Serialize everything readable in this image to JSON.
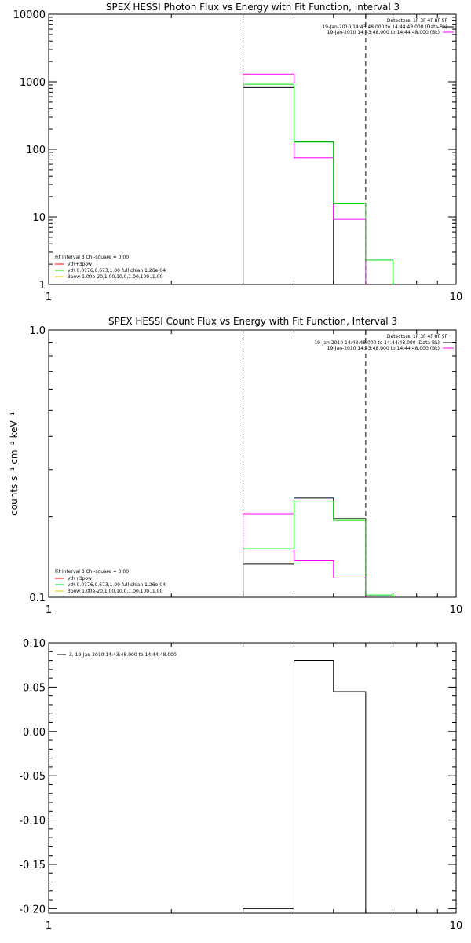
{
  "chart_data": [
    {
      "type": "line",
      "title": "SPEX HESSI Photon Flux vs Energy with Fit Function, Interval 3",
      "xscale": "log",
      "yscale": "log",
      "xlim": [
        1,
        10
      ],
      "ylim": [
        1,
        10000
      ],
      "xticks": [
        "1",
        "10"
      ],
      "yticks": [
        "1",
        "10",
        "100",
        "1000",
        "10000"
      ],
      "vlines": [
        {
          "x": 3,
          "style": "dotted"
        },
        {
          "x": 6,
          "style": "dashed"
        }
      ],
      "legend_top": {
        "line1": "Detectors: 1F 3F 4F 8F 9F",
        "line2": "19-Jan-2010 14:43:48.000 to 14:44:48.000 (Data-Bk)",
        "line3": "19-Jan-2010 14:43:48.000 to 14:44:48.000 (Bk)"
      },
      "legend_bottom": {
        "line1": "Fit Interval 3   Chi-square = 0.00",
        "line2": "vth+3pow",
        "line3": "vth 0.0176,0.673,1.00  full chian 1.26e-04",
        "line4": "3pow 1.00e-20,1.00,10.0,1.00,100.,1.00"
      },
      "edges": [
        3,
        4,
        5,
        6,
        7
      ],
      "series": [
        {
          "color": "#000000",
          "values": [
            820,
            130,
            null,
            null
          ]
        },
        {
          "color": "#ff00ff",
          "values": [
            1300,
            75,
            9.2,
            null
          ]
        },
        {
          "color": "#00dd00",
          "values": [
            920,
            128,
            16,
            2.3
          ]
        }
      ]
    },
    {
      "type": "line",
      "title": "SPEX HESSI Count Flux vs Energy with Fit Function, Interval 3",
      "ylabel": "counts s⁻¹ cm⁻² keV⁻¹",
      "xscale": "log",
      "yscale": "log",
      "xlim": [
        1,
        10
      ],
      "ylim": [
        0.1,
        1.0
      ],
      "xticks": [
        "1",
        "10"
      ],
      "yticks": [
        "0.1",
        "1.0"
      ],
      "vlines": [
        {
          "x": 3,
          "style": "dotted"
        },
        {
          "x": 6,
          "style": "dashed"
        }
      ],
      "legend_top": {
        "line1": "Detectors: 1F 3F 4F 8F 9F",
        "line2": "19-Jan-2010 14:43:48.000 to 14:44:48.000 (Data-Bk)",
        "line3": "19-Jan-2010 14:43:48.000 to 14:44:48.000 (Bk)"
      },
      "legend_bottom": {
        "line1": "Fit Interval 3   Chi-square = 0.00",
        "line2": "vth+3pow",
        "line3": "vth 0.0176,0.673,1.00  full chian 1.26e-04",
        "line4": "3pow 1.00e-20,1.00,10.0,1.00,100.,1.00"
      },
      "edges": [
        3,
        4,
        5,
        6,
        7
      ],
      "series": [
        {
          "color": "#000000",
          "values": [
            0.133,
            0.235,
            0.197,
            null
          ]
        },
        {
          "color": "#ff00ff",
          "values": [
            0.205,
            0.137,
            0.118,
            null
          ]
        },
        {
          "color": "#00dd00",
          "values": [
            0.152,
            0.229,
            0.194,
            0.102
          ]
        }
      ]
    },
    {
      "type": "line",
      "xscale": "log",
      "yscale": "linear",
      "xlim": [
        1,
        10
      ],
      "ylim": [
        -0.205,
        0.1
      ],
      "xticks": [
        "1",
        "10"
      ],
      "yticks": [
        {
          "v": 0.1,
          "label": "0.10"
        },
        {
          "v": 0.05,
          "label": "0.05"
        },
        {
          "v": 0.0,
          "label": "0.00"
        },
        {
          "v": -0.05,
          "label": "-0.05"
        },
        {
          "v": -0.1,
          "label": "-0.10"
        },
        {
          "v": -0.15,
          "label": "-0.15"
        },
        {
          "v": -0.2,
          "label": "-0.20"
        }
      ],
      "legend": "3, 19-Jan-2010 14:43:48.000 to 14:44:48.000",
      "edges": [
        3,
        4,
        5,
        6
      ],
      "series": [
        {
          "color": "#000000",
          "values": [
            -0.2,
            0.08,
            0.045
          ]
        }
      ]
    }
  ]
}
